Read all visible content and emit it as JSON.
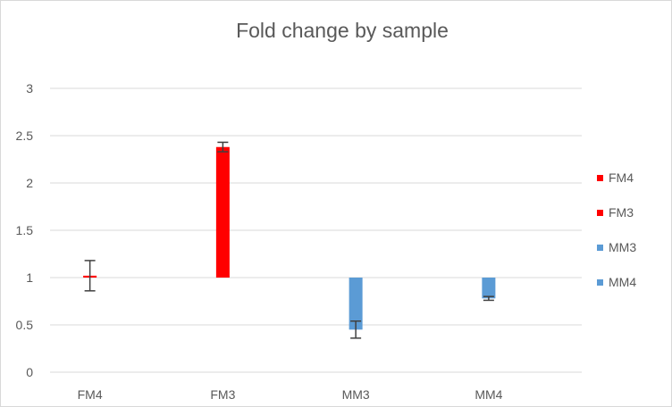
{
  "chart_data": {
    "type": "bar",
    "title": "Fold change by sample",
    "xlabel": "",
    "ylabel": "",
    "ylim": [
      0,
      3
    ],
    "yticks": [
      0,
      0.5,
      1,
      1.5,
      2,
      2.5,
      3
    ],
    "baseline": 1,
    "categories": [
      "FM4",
      "FM3",
      "MM3",
      "MM4"
    ],
    "series": [
      {
        "name": "FM4",
        "color": "#ff0000",
        "category": "FM4",
        "value": 1.02,
        "error": 0.16
      },
      {
        "name": "FM3",
        "color": "#ff0000",
        "category": "FM3",
        "value": 2.38,
        "error": 0.05
      },
      {
        "name": "MM3",
        "color": "#5b9bd5",
        "category": "MM3",
        "value": 0.45,
        "error": 0.09
      },
      {
        "name": "MM4",
        "color": "#5b9bd5",
        "category": "MM4",
        "value": 0.78,
        "error": 0.02
      }
    ],
    "legend": {
      "position": "right",
      "entries": [
        "FM4",
        "FM3",
        "MM3",
        "MM4"
      ]
    },
    "grid": true
  }
}
